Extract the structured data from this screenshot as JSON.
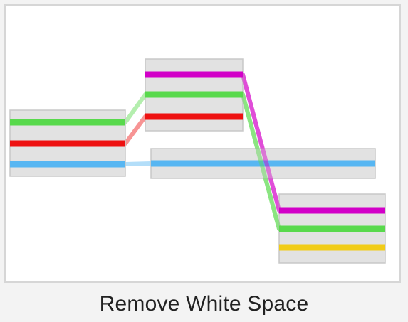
{
  "caption": "Remove White Space",
  "colors": {
    "background": "#f3f3f3",
    "canvas": "#ffffff",
    "canvas_border": "#d6d6d6",
    "box_fill": "#e0e0e0",
    "box_border": "#c8c8c8",
    "green": "#58d94c",
    "red": "#ee1111",
    "blue": "#57b6f2",
    "magenta": "#d200c8",
    "yellow": "#f1cc17"
  },
  "nodes": [
    {
      "id": "box-left",
      "lanes": [
        "green",
        "red",
        "blue"
      ]
    },
    {
      "id": "box-top-middle",
      "lanes": [
        "magenta",
        "green",
        "red"
      ]
    },
    {
      "id": "box-wide-middle",
      "lanes": [
        "blue"
      ]
    },
    {
      "id": "box-bottom-right",
      "lanes": [
        "magenta",
        "green",
        "yellow"
      ]
    }
  ],
  "links": [
    {
      "from": "box-left",
      "to": "box-top-middle",
      "color": "green"
    },
    {
      "from": "box-left",
      "to": "box-top-middle",
      "color": "red"
    },
    {
      "from": "box-left",
      "to": "box-wide-middle",
      "color": "blue"
    },
    {
      "from": "box-top-middle",
      "to": "box-bottom-right",
      "color": "magenta"
    },
    {
      "from": "box-top-middle",
      "to": "box-bottom-right",
      "color": "green"
    }
  ]
}
